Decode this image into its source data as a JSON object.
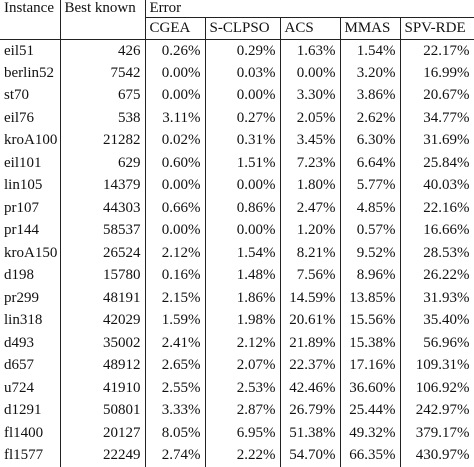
{
  "table": {
    "header": {
      "instance": "Instance",
      "best_known": "Best known",
      "error": "Error",
      "methods": [
        "CGEA",
        "S-CLPSO",
        "ACS",
        "MMAS",
        "SPV-RDE"
      ]
    },
    "rows": [
      [
        "eil51",
        "426",
        "0.26%",
        "0.29%",
        "1.63%",
        "1.54%",
        "22.17%"
      ],
      [
        "berlin52",
        "7542",
        "0.00%",
        "0.03%",
        "0.00%",
        "3.20%",
        "16.99%"
      ],
      [
        "st70",
        "675",
        "0.00%",
        "0.00%",
        "3.30%",
        "3.86%",
        "20.67%"
      ],
      [
        "eil76",
        "538",
        "3.11%",
        "0.27%",
        "2.05%",
        "2.62%",
        "34.77%"
      ],
      [
        "kroA100",
        "21282",
        "0.02%",
        "0.31%",
        "3.45%",
        "6.30%",
        "31.69%"
      ],
      [
        "eil101",
        "629",
        "0.60%",
        "1.51%",
        "7.23%",
        "6.64%",
        "25.84%"
      ],
      [
        "lin105",
        "14379",
        "0.00%",
        "0.00%",
        "1.80%",
        "5.77%",
        "40.03%"
      ],
      [
        "pr107",
        "44303",
        "0.66%",
        "0.86%",
        "2.47%",
        "4.85%",
        "22.16%"
      ],
      [
        "pr144",
        "58537",
        "0.00%",
        "0.00%",
        "1.20%",
        "0.57%",
        "16.66%"
      ],
      [
        "kroA150",
        "26524",
        "2.12%",
        "1.54%",
        "8.21%",
        "9.52%",
        "28.53%"
      ],
      [
        "d198",
        "15780",
        "0.16%",
        "1.48%",
        "7.56%",
        "8.96%",
        "26.22%"
      ],
      [
        "pr299",
        "48191",
        "2.15%",
        "1.86%",
        "14.59%",
        "13.85%",
        "31.93%"
      ],
      [
        "lin318",
        "42029",
        "1.59%",
        "1.98%",
        "20.61%",
        "15.56%",
        "35.40%"
      ],
      [
        "d493",
        "35002",
        "2.41%",
        "2.12%",
        "21.89%",
        "15.38%",
        "56.96%"
      ],
      [
        "d657",
        "48912",
        "2.65%",
        "2.07%",
        "22.37%",
        "17.16%",
        "109.31%"
      ],
      [
        "u724",
        "41910",
        "2.55%",
        "2.53%",
        "42.46%",
        "36.60%",
        "106.92%"
      ],
      [
        "d1291",
        "50801",
        "3.33%",
        "2.87%",
        "26.79%",
        "25.44%",
        "242.97%"
      ],
      [
        "fl1400",
        "20127",
        "8.05%",
        "6.95%",
        "51.38%",
        "49.32%",
        "379.17%"
      ],
      [
        "fl1577",
        "22249",
        "2.74%",
        "2.22%",
        "54.70%",
        "66.35%",
        "430.97%"
      ]
    ]
  }
}
